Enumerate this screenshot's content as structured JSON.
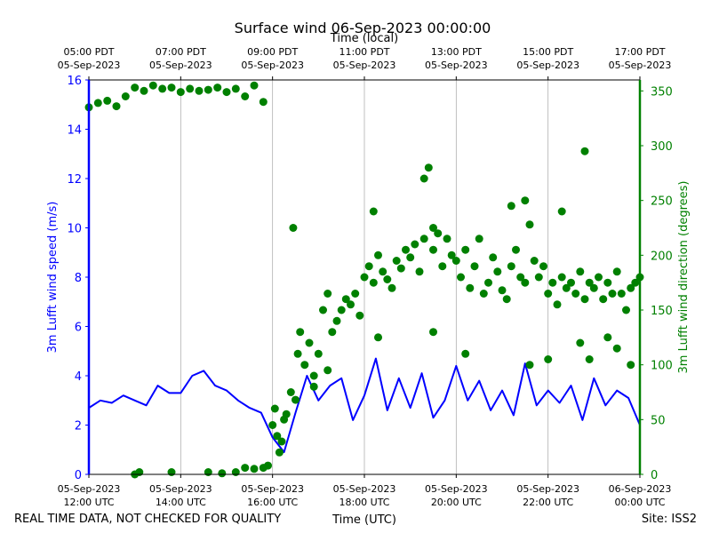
{
  "chart_data": {
    "type": "line+scatter",
    "title": "Surface wind 06-Sep-2023 00:00:00",
    "top_axis_label": "Time (local)",
    "xlabel": "Time (UTC)",
    "ylabel_left": "3m Lufft wind speed (m/s)",
    "ylabel_right": "3m Lufft wind direction (degrees)",
    "footer_left": "REAL TIME DATA, NOT CHECKED FOR QUALITY",
    "footer_right": "Site: ISS2",
    "x_range_hours": [
      12,
      24
    ],
    "ylim_left": [
      0,
      16
    ],
    "ylim_right": [
      0,
      360
    ],
    "left_ticks": [
      "0",
      "2",
      "4",
      "6",
      "8",
      "10",
      "12",
      "14",
      "16"
    ],
    "right_ticks": [
      "0",
      "50",
      "100",
      "150",
      "200",
      "250",
      "300",
      "350"
    ],
    "bottom_ticks": [
      {
        "hour": 12,
        "line1": "05-Sep-2023",
        "line2": "12:00 UTC"
      },
      {
        "hour": 14,
        "line1": "05-Sep-2023",
        "line2": "14:00 UTC"
      },
      {
        "hour": 16,
        "line1": "05-Sep-2023",
        "line2": "16:00 UTC"
      },
      {
        "hour": 18,
        "line1": "05-Sep-2023",
        "line2": "18:00 UTC"
      },
      {
        "hour": 20,
        "line1": "05-Sep-2023",
        "line2": "20:00 UTC"
      },
      {
        "hour": 22,
        "line1": "05-Sep-2023",
        "line2": "22:00 UTC"
      },
      {
        "hour": 24,
        "line1": "06-Sep-2023",
        "line2": "00:00 UTC"
      }
    ],
    "top_ticks": [
      {
        "hour": 12,
        "line1": "05:00 PDT",
        "line2": "05-Sep-2023"
      },
      {
        "hour": 14,
        "line1": "07:00 PDT",
        "line2": "05-Sep-2023"
      },
      {
        "hour": 16,
        "line1": "09:00 PDT",
        "line2": "05-Sep-2023"
      },
      {
        "hour": 18,
        "line1": "11:00 PDT",
        "line2": "05-Sep-2023"
      },
      {
        "hour": 20,
        "line1": "13:00 PDT",
        "line2": "05-Sep-2023"
      },
      {
        "hour": 22,
        "line1": "15:00 PDT",
        "line2": "05-Sep-2023"
      },
      {
        "hour": 24,
        "line1": "17:00 PDT",
        "line2": "05-Sep-2023"
      }
    ],
    "series": [
      {
        "name": "wind speed",
        "kind": "line",
        "axis": "left",
        "color": "#0000ff",
        "points": [
          [
            12.0,
            2.7
          ],
          [
            12.25,
            3.0
          ],
          [
            12.5,
            2.9
          ],
          [
            12.75,
            3.2
          ],
          [
            13.0,
            3.0
          ],
          [
            13.25,
            2.8
          ],
          [
            13.5,
            3.6
          ],
          [
            13.75,
            3.3
          ],
          [
            14.0,
            3.3
          ],
          [
            14.25,
            4.0
          ],
          [
            14.5,
            4.2
          ],
          [
            14.75,
            3.6
          ],
          [
            15.0,
            3.4
          ],
          [
            15.25,
            3.0
          ],
          [
            15.5,
            2.7
          ],
          [
            15.75,
            2.5
          ],
          [
            16.0,
            1.5
          ],
          [
            16.25,
            0.9
          ],
          [
            16.5,
            2.5
          ],
          [
            16.75,
            4.0
          ],
          [
            17.0,
            3.0
          ],
          [
            17.25,
            3.6
          ],
          [
            17.5,
            3.9
          ],
          [
            17.75,
            2.2
          ],
          [
            18.0,
            3.2
          ],
          [
            18.25,
            4.7
          ],
          [
            18.5,
            2.6
          ],
          [
            18.75,
            3.9
          ],
          [
            19.0,
            2.7
          ],
          [
            19.25,
            4.1
          ],
          [
            19.5,
            2.3
          ],
          [
            19.75,
            3.0
          ],
          [
            20.0,
            4.4
          ],
          [
            20.25,
            3.0
          ],
          [
            20.5,
            3.8
          ],
          [
            20.75,
            2.6
          ],
          [
            21.0,
            3.4
          ],
          [
            21.25,
            2.4
          ],
          [
            21.5,
            4.5
          ],
          [
            21.75,
            2.8
          ],
          [
            22.0,
            3.4
          ],
          [
            22.25,
            2.9
          ],
          [
            22.5,
            3.6
          ],
          [
            22.75,
            2.2
          ],
          [
            23.0,
            3.9
          ],
          [
            23.25,
            2.8
          ],
          [
            23.5,
            3.4
          ],
          [
            23.75,
            3.1
          ],
          [
            24.0,
            2.0
          ]
        ]
      },
      {
        "name": "wind direction",
        "kind": "scatter",
        "axis": "right",
        "color": "#008000",
        "points": [
          [
            12.0,
            335
          ],
          [
            12.2,
            339
          ],
          [
            12.4,
            341
          ],
          [
            12.6,
            336
          ],
          [
            12.8,
            345
          ],
          [
            13.0,
            353
          ],
          [
            13.2,
            350
          ],
          [
            13.4,
            355
          ],
          [
            13.6,
            352
          ],
          [
            13.8,
            353
          ],
          [
            14.0,
            349
          ],
          [
            14.2,
            352
          ],
          [
            14.4,
            350
          ],
          [
            14.6,
            351
          ],
          [
            14.8,
            353
          ],
          [
            15.0,
            349
          ],
          [
            15.2,
            352
          ],
          [
            15.4,
            345
          ],
          [
            15.6,
            355
          ],
          [
            15.8,
            340
          ],
          [
            13.0,
            0
          ],
          [
            13.1,
            2
          ],
          [
            13.8,
            2
          ],
          [
            14.6,
            2
          ],
          [
            14.9,
            1
          ],
          [
            15.2,
            2
          ],
          [
            15.4,
            6
          ],
          [
            15.6,
            5
          ],
          [
            15.8,
            6
          ],
          [
            15.9,
            8
          ],
          [
            16.0,
            45
          ],
          [
            16.05,
            60
          ],
          [
            16.1,
            35
          ],
          [
            16.15,
            20
          ],
          [
            16.2,
            30
          ],
          [
            16.25,
            50
          ],
          [
            16.3,
            55
          ],
          [
            16.4,
            75
          ],
          [
            16.5,
            68
          ],
          [
            16.55,
            110
          ],
          [
            16.6,
            130
          ],
          [
            16.7,
            100
          ],
          [
            16.8,
            120
          ],
          [
            16.9,
            90
          ],
          [
            17.0,
            110
          ],
          [
            17.1,
            150
          ],
          [
            17.2,
            165
          ],
          [
            16.45,
            225
          ],
          [
            16.9,
            80
          ],
          [
            17.3,
            130
          ],
          [
            17.4,
            140
          ],
          [
            17.5,
            150
          ],
          [
            17.6,
            160
          ],
          [
            17.7,
            155
          ],
          [
            17.8,
            165
          ],
          [
            17.9,
            145
          ],
          [
            18.0,
            180
          ],
          [
            18.1,
            190
          ],
          [
            18.2,
            175
          ],
          [
            18.3,
            200
          ],
          [
            18.4,
            185
          ],
          [
            18.5,
            178
          ],
          [
            18.6,
            170
          ],
          [
            18.7,
            195
          ],
          [
            18.8,
            188
          ],
          [
            18.9,
            205
          ],
          [
            19.0,
            198
          ],
          [
            19.1,
            210
          ],
          [
            19.2,
            185
          ],
          [
            19.3,
            215
          ],
          [
            19.4,
            280
          ],
          [
            19.5,
            205
          ],
          [
            19.6,
            220
          ],
          [
            19.7,
            190
          ],
          [
            19.8,
            215
          ],
          [
            19.9,
            200
          ],
          [
            20.0,
            195
          ],
          [
            20.1,
            180
          ],
          [
            20.2,
            205
          ],
          [
            20.3,
            170
          ],
          [
            20.4,
            190
          ],
          [
            20.5,
            215
          ],
          [
            20.6,
            165
          ],
          [
            20.7,
            175
          ],
          [
            20.8,
            198
          ],
          [
            20.9,
            185
          ],
          [
            21.0,
            168
          ],
          [
            21.1,
            160
          ],
          [
            21.2,
            190
          ],
          [
            21.3,
            205
          ],
          [
            21.4,
            180
          ],
          [
            21.5,
            175
          ],
          [
            21.6,
            228
          ],
          [
            21.7,
            195
          ],
          [
            21.8,
            180
          ],
          [
            21.9,
            190
          ],
          [
            22.0,
            165
          ],
          [
            22.1,
            175
          ],
          [
            22.2,
            155
          ],
          [
            22.3,
            180
          ],
          [
            22.4,
            170
          ],
          [
            22.5,
            175
          ],
          [
            22.6,
            165
          ],
          [
            22.7,
            185
          ],
          [
            22.8,
            160
          ],
          [
            22.9,
            175
          ],
          [
            23.0,
            170
          ],
          [
            23.1,
            180
          ],
          [
            23.2,
            160
          ],
          [
            23.3,
            175
          ],
          [
            23.4,
            165
          ],
          [
            23.5,
            185
          ],
          [
            23.6,
            165
          ],
          [
            23.7,
            150
          ],
          [
            23.8,
            170
          ],
          [
            23.9,
            175
          ],
          [
            24.0,
            180
          ],
          [
            18.2,
            240
          ],
          [
            19.3,
            270
          ],
          [
            19.5,
            225
          ],
          [
            21.2,
            245
          ],
          [
            21.5,
            250
          ],
          [
            22.3,
            240
          ],
          [
            22.8,
            295
          ],
          [
            17.2,
            95
          ],
          [
            18.3,
            125
          ],
          [
            19.5,
            130
          ],
          [
            20.2,
            110
          ],
          [
            21.6,
            100
          ],
          [
            22.0,
            105
          ],
          [
            22.7,
            120
          ],
          [
            22.9,
            105
          ],
          [
            23.3,
            125
          ],
          [
            23.5,
            115
          ],
          [
            23.8,
            100
          ]
        ]
      }
    ]
  }
}
